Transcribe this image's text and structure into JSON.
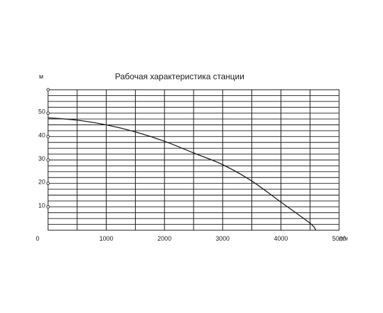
{
  "chart_data": {
    "type": "line",
    "title": "Рабочая характеристика станции",
    "ylabel": "м",
    "xunit": "л/ч",
    "origin_label": "0",
    "xlim": [
      0,
      5000
    ],
    "ylim": [
      0,
      60
    ],
    "x_ticks": [
      1000,
      2000,
      3000,
      4000,
      5000
    ],
    "x_tick_labels": [
      "1000",
      "2000",
      "3000",
      "4000",
      "5000"
    ],
    "y_ticks": [
      10,
      20,
      30,
      40,
      50
    ],
    "y_tick_labels": [
      "10",
      "20",
      "30",
      "40",
      "50"
    ],
    "y_markers": [
      10,
      20,
      30,
      40,
      50,
      60
    ],
    "x_grid_lines": [
      500,
      1000,
      1500,
      2000,
      2500,
      3000,
      3500,
      4000,
      4500
    ],
    "y_grid_step": 2.5,
    "grid": true,
    "series": [
      {
        "x": [
          0,
          500,
          1000,
          1500,
          2000,
          2500,
          3000,
          3500,
          4000,
          4500,
          4600
        ],
        "values": [
          48,
          47,
          45,
          42,
          38,
          33,
          28,
          21,
          12,
          3,
          0
        ]
      }
    ]
  }
}
